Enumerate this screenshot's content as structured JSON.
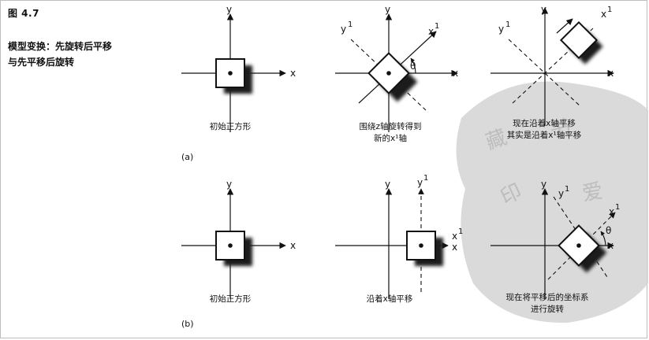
{
  "figure": {
    "label": "图 4.7",
    "caption_line_1": "模型变换：先旋转后平移",
    "caption_line_2": "与先平移后旋转"
  },
  "axes": {
    "x": "x",
    "y": "y",
    "x1": "x",
    "y1": "y",
    "sup": "1",
    "theta": "θ"
  },
  "row_a": {
    "label": "(a)",
    "panel_1_caption": "初始正方形",
    "panel_2_caption_line_1": "围绕z轴旋转得到",
    "panel_2_caption_line_2": "新的x¹轴",
    "panel_3_caption_line_1": "现在沿着x轴平移",
    "panel_3_caption_line_2": "其实是沿着x¹轴平移"
  },
  "row_b": {
    "label": "(b)",
    "panel_1_caption": "初始正方形",
    "panel_2_caption": "沿着x轴平移",
    "panel_3_caption_line_1": "现在将平移后的坐标系",
    "panel_3_caption_line_2": "进行旋转"
  }
}
